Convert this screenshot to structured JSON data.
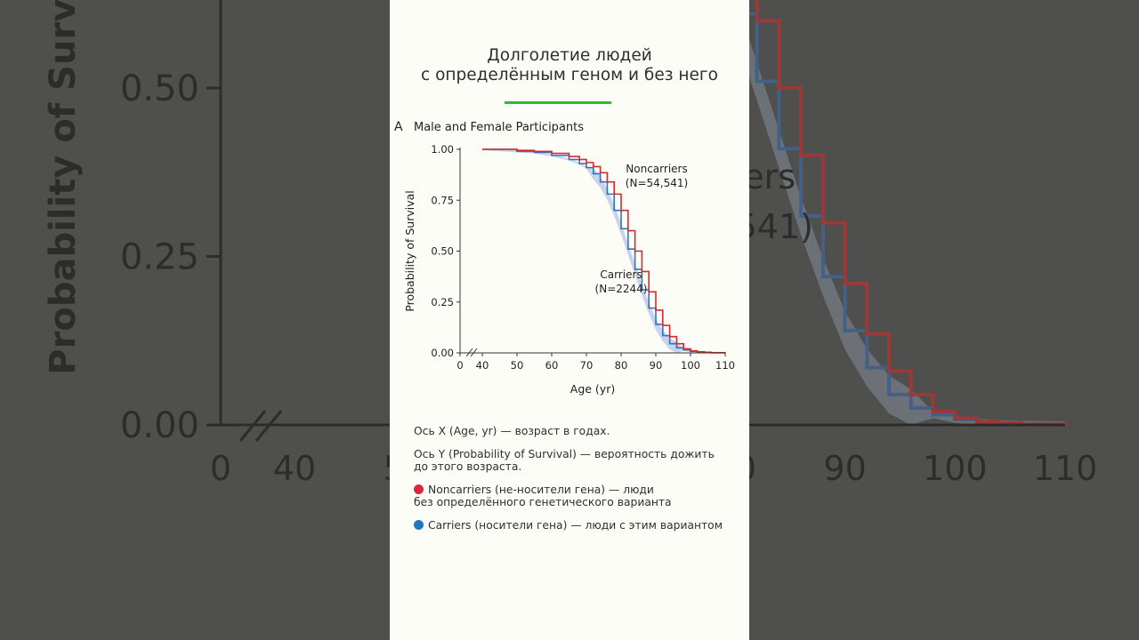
{
  "colors": {
    "noncarriers": "#d62a2a",
    "carriers": "#3c6fb8",
    "carriers_band": "#b8cbea",
    "title_rule": "#2bbf2b",
    "noncarriers_dot": "#e0253f",
    "carriers_dot": "#1f78c0"
  },
  "header": {
    "title_line1": "Долголетие людей",
    "title_line2": "с определённым геном и без него"
  },
  "panel": {
    "letter": "A",
    "title": "Male and Female Participants"
  },
  "explanations": {
    "x_axis": "Ось X (Age, yr) — возраст в годах.",
    "y_axis_line1": "Ось Y (Probability of Survival) — вероятность дожить",
    "y_axis_line2": "до этого возраста.",
    "noncarriers_line1": "Noncarriers (не-носители гена) — люди",
    "noncarriers_line2": "без определённого генетического варианта",
    "carriers": "Carriers (носители гена) — люди с этим вариантом"
  },
  "chart_data": {
    "type": "line",
    "title": "Male and Female Participants",
    "xlabel": "Age (yr)",
    "ylabel": "Probability of Survival",
    "x_ticks": [
      "0",
      "40",
      "50",
      "60",
      "70",
      "80",
      "90",
      "100",
      "110"
    ],
    "y_ticks": [
      "1.00",
      "0.75",
      "0.50",
      "0.25",
      "0.00"
    ],
    "xlim": [
      40,
      110
    ],
    "ylim": [
      0,
      1
    ],
    "axis_break": "x between 0 and 40",
    "step": true,
    "series": [
      {
        "name": "Noncarriers",
        "n_label": "(N=54,541)",
        "x": [
          40,
          50,
          55,
          60,
          65,
          68,
          70,
          72,
          74,
          76,
          78,
          80,
          82,
          84,
          86,
          88,
          90,
          92,
          94,
          96,
          98,
          100,
          102,
          104,
          106,
          110
        ],
        "y": [
          1.0,
          0.995,
          0.99,
          0.98,
          0.965,
          0.95,
          0.935,
          0.915,
          0.885,
          0.84,
          0.78,
          0.7,
          0.6,
          0.5,
          0.4,
          0.3,
          0.21,
          0.135,
          0.08,
          0.045,
          0.02,
          0.01,
          0.005,
          0.003,
          0.001,
          0.0
        ]
      },
      {
        "name": "Carriers",
        "n_label": "(N=2244)",
        "x": [
          40,
          50,
          55,
          60,
          65,
          68,
          70,
          72,
          74,
          76,
          78,
          80,
          82,
          84,
          86,
          88,
          90,
          92,
          94,
          96,
          98,
          100,
          102,
          104,
          106,
          110
        ],
        "y": [
          1.0,
          0.99,
          0.985,
          0.97,
          0.95,
          0.93,
          0.91,
          0.88,
          0.84,
          0.78,
          0.7,
          0.61,
          0.51,
          0.41,
          0.31,
          0.22,
          0.14,
          0.085,
          0.045,
          0.025,
          0.015,
          0.008,
          0.004,
          0.002,
          0.001,
          0.0
        ]
      }
    ]
  }
}
